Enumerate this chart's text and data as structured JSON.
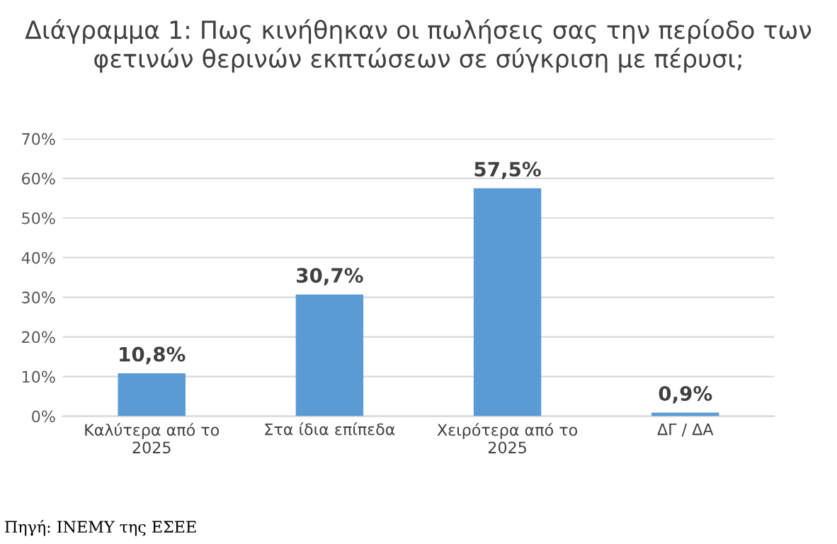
{
  "chart_data": {
    "type": "bar",
    "title": "Διάγραμμα 1: Πως κινήθηκαν οι πωλήσεις σας την περίοδο των φετινών θερινών εκπτώσεων σε σύγκριση με πέρυσι;",
    "categories": [
      "Καλύτερα από το 2025",
      "Στα ίδια επίπεδα",
      "Χειρότερα από το 2025",
      "ΔΓ / ΔΑ"
    ],
    "values": [
      10.8,
      30.7,
      57.5,
      0.9
    ],
    "value_labels": [
      "10,8%",
      "30,7%",
      "57,5%",
      "0,9%"
    ],
    "color": "#5b9bd5",
    "ylim": [
      0,
      70
    ],
    "yticks": [
      {
        "value": 0,
        "label": "0%"
      },
      {
        "value": 10,
        "label": "10%"
      },
      {
        "value": 20,
        "label": "20%"
      },
      {
        "value": 30,
        "label": "30%"
      },
      {
        "value": 40,
        "label": "40%"
      },
      {
        "value": 50,
        "label": "50%"
      },
      {
        "value": 60,
        "label": "60%"
      },
      {
        "value": 70,
        "label": "70%"
      }
    ],
    "grid": "y",
    "annotations": [
      "Πηγή: ΙΝΕΜΥ της ΕΣΕΕ"
    ]
  }
}
